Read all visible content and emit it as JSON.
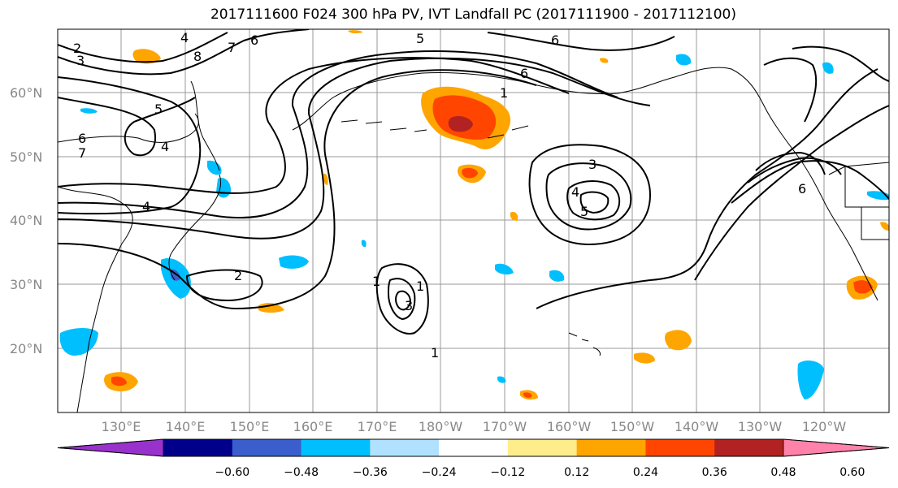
{
  "title": "2017111600 F024 300 hPa PV, IVT Landfall PC (2017111900 - 2017112100)",
  "lat_labels": [
    "60°N",
    "50°N",
    "40°N",
    "30°N",
    "20°N"
  ],
  "lon_labels": [
    "130°E",
    "140°E",
    "150°E",
    "160°E",
    "170°E",
    "180°W",
    "170°W",
    "160°W",
    "150°W",
    "140°W",
    "130°W",
    "120°W"
  ],
  "colorbar": {
    "colors": [
      "#9932CC",
      "#00008B",
      "#3A5FCD",
      "#00BFFF",
      "#B0E2FF",
      "#FFFFFF",
      "#FFEC8B",
      "#FFA500",
      "#FF4500",
      "#B22222",
      "#FF82AB"
    ],
    "tick_labels": [
      "-0.60",
      "-0.48",
      "-0.36",
      "-0.24",
      "-0.12",
      "0.12",
      "0.24",
      "0.36",
      "0.48",
      "0.60"
    ]
  },
  "contour_labels": [
    "4",
    "6",
    "5",
    "6",
    "2",
    "3",
    "7",
    "8",
    "5",
    "4",
    "6",
    "7",
    "4",
    "2",
    "1",
    "3",
    "1",
    "1",
    "6",
    "1",
    "3",
    "4",
    "5",
    "6"
  ]
}
